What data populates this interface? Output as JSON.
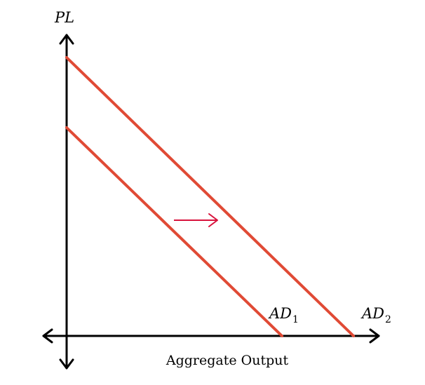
{
  "y_axis_label": "PL",
  "x_axis_label": "Aggregate Output",
  "curves": [
    {
      "id": "ad1",
      "label_main": "AD",
      "label_sub": "1"
    },
    {
      "id": "ad2",
      "label_main": "AD",
      "label_sub": "2"
    }
  ],
  "shift_arrow": {
    "direction": "right"
  },
  "colors": {
    "curve": "#e04a35",
    "arrow": "#d8123c",
    "axis": "#000000"
  }
}
